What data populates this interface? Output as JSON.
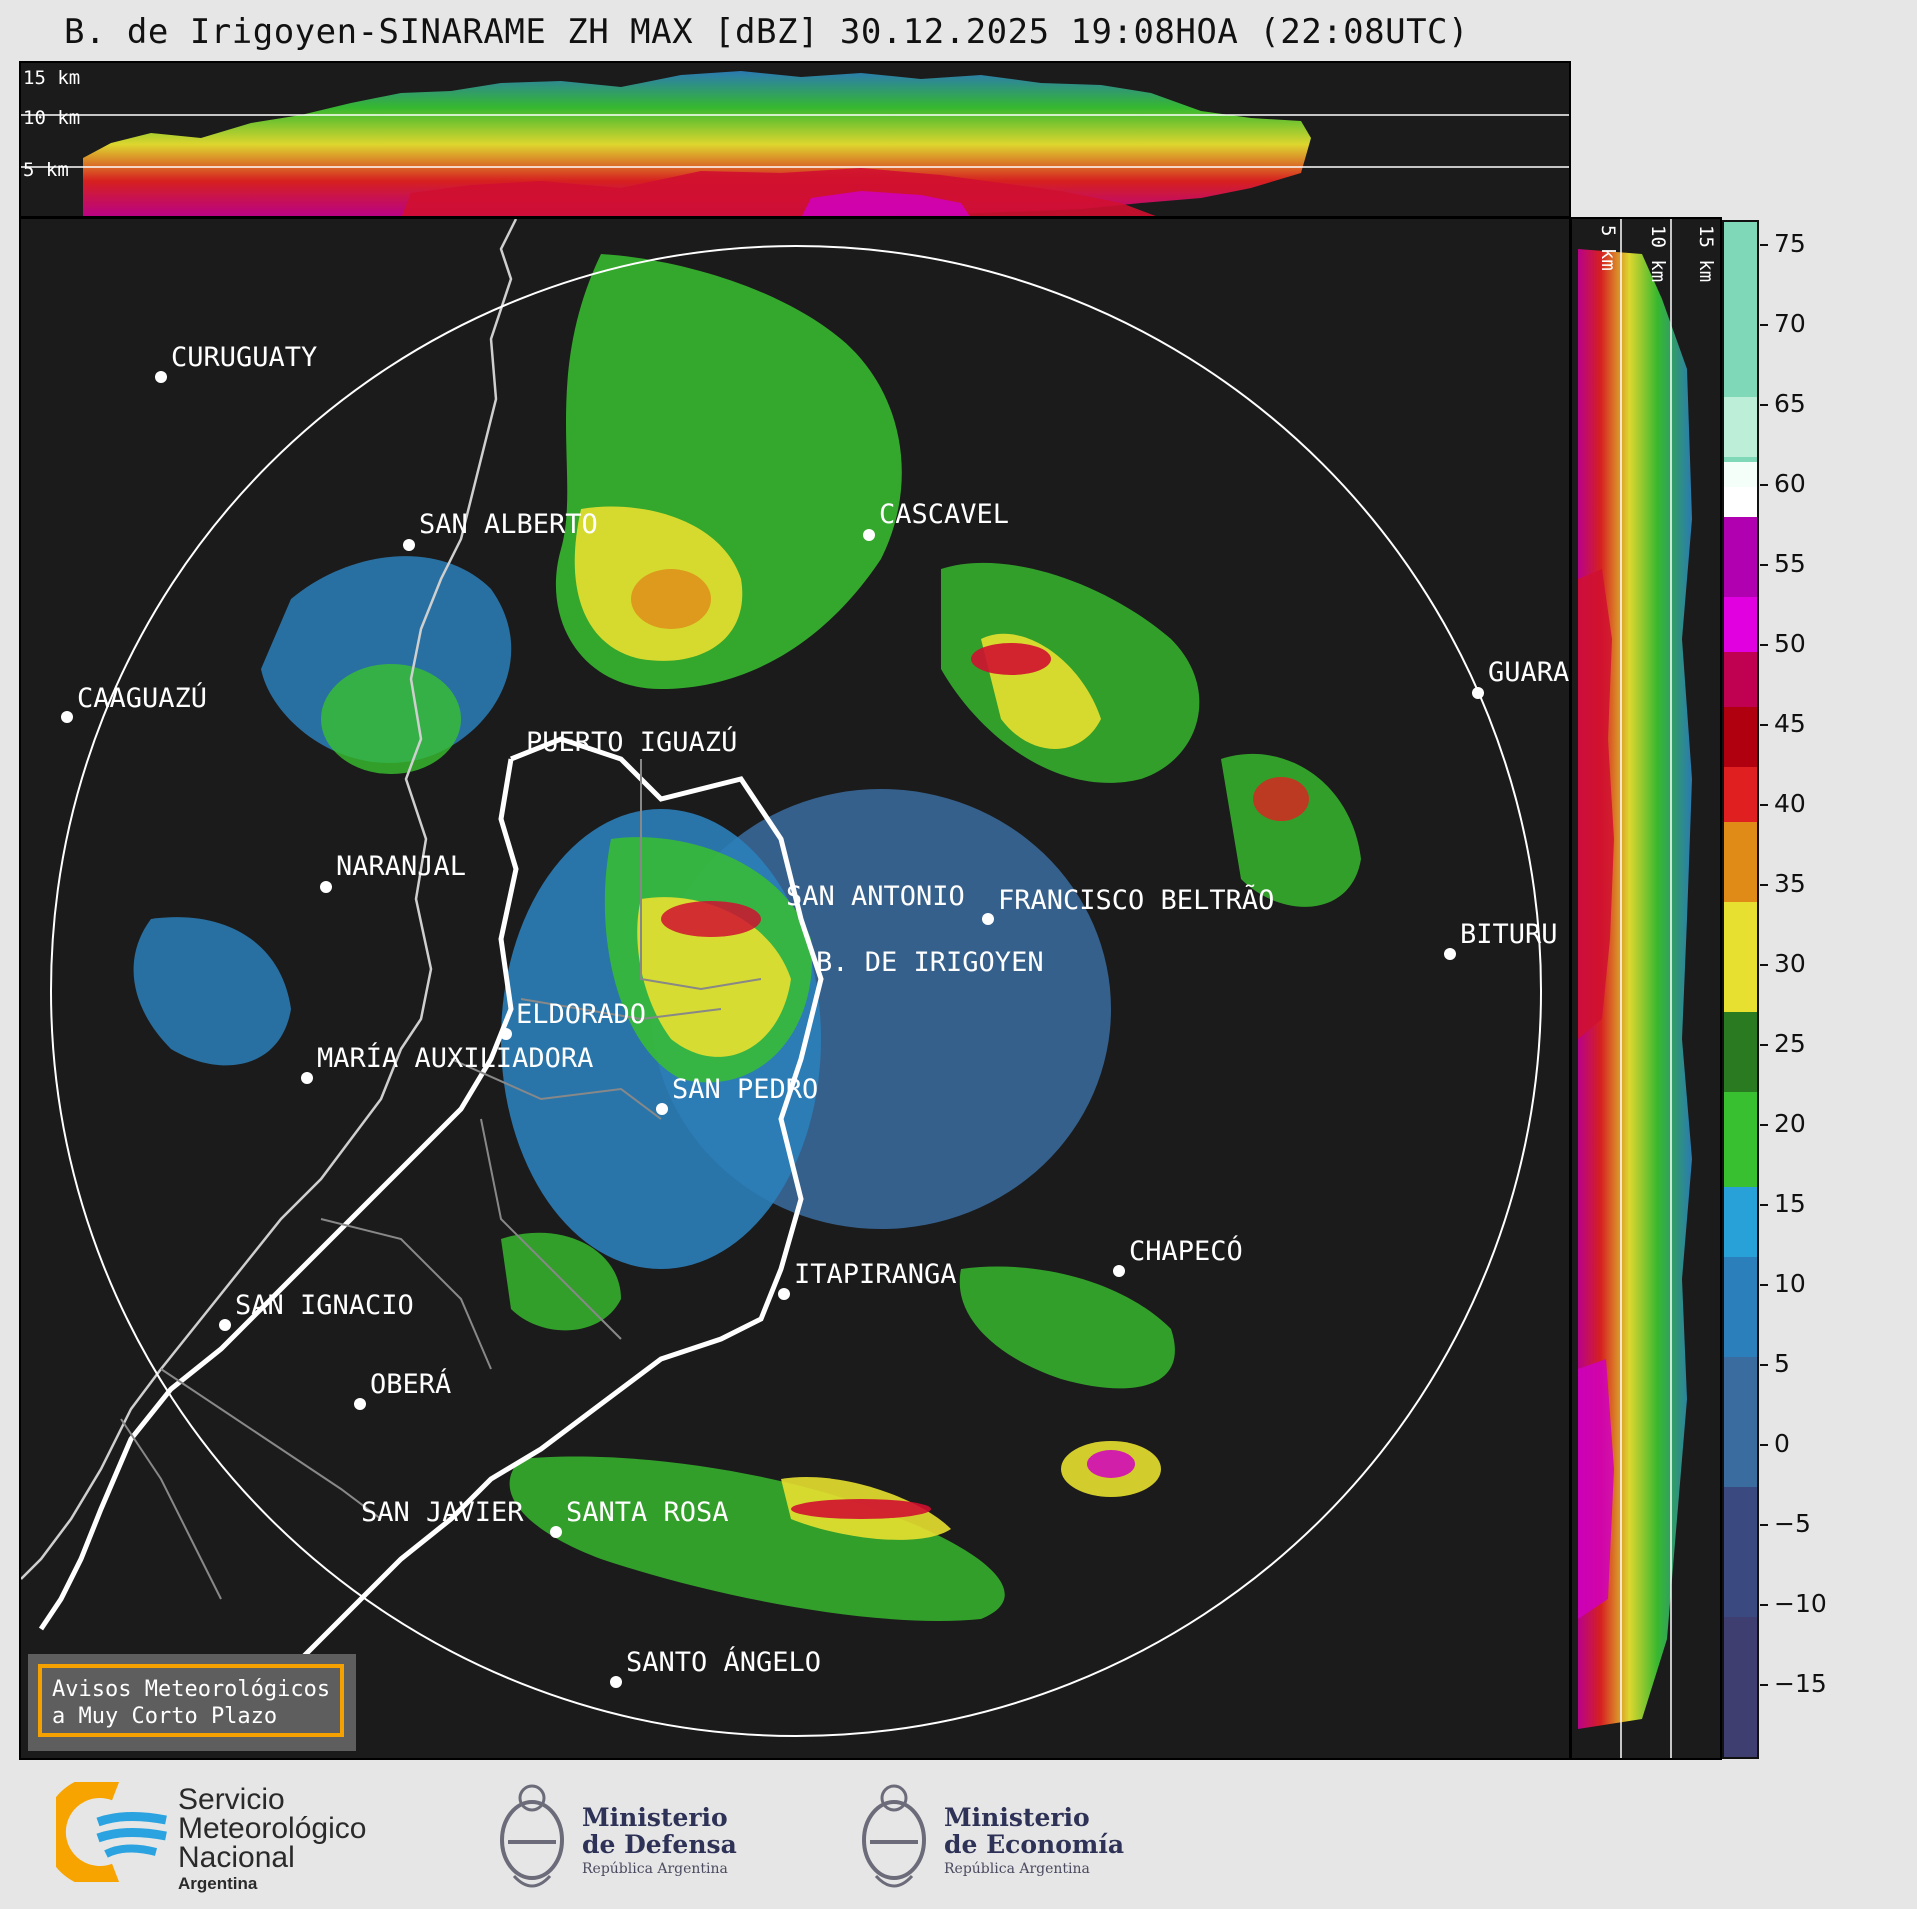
{
  "header": {
    "title": "B. de Irigoyen-SINARAME ZH MAX [dBZ] 30.12.2025 19:08HOA (22:08UTC)"
  },
  "top_section": {
    "height_labels": [
      "15 km",
      "10 km",
      "5 km"
    ]
  },
  "side_section": {
    "height_labels": [
      "5 km",
      "10 km",
      "15 km"
    ]
  },
  "colorbar": {
    "units": "dBZ",
    "ticks": [
      "75",
      "70",
      "65",
      "60",
      "55",
      "50",
      "45",
      "40",
      "35",
      "30",
      "25",
      "20",
      "15",
      "10",
      "5",
      "0",
      "−5",
      "−10",
      "−15"
    ],
    "colors": {
      "gt60": "#88dcbc",
      "55_60": "#a000a0",
      "50_55": "#e000e0",
      "45_50": "#c00020",
      "40_45": "#e02020",
      "35_40": "#e08a18",
      "30_35": "#e8e030",
      "25_30": "#2a7a22",
      "20_25": "#36c030",
      "15_20": "#38e030",
      "10_15": "#28a0d8",
      "5_10": "#2b7fba",
      "0_5": "#3a6ca0",
      "neg": "#3e3e70"
    }
  },
  "map": {
    "radar_site": "B. DE IRIGOYEN",
    "cities": [
      {
        "name": "CURUGUATY"
      },
      {
        "name": "SAN ALBERTO"
      },
      {
        "name": "CASCAVEL"
      },
      {
        "name": "CAAGUAZÚ"
      },
      {
        "name": "GUARA"
      },
      {
        "name": "PUERTO IGUAZÚ"
      },
      {
        "name": "NARANJAL"
      },
      {
        "name": "SAN ANTONIO"
      },
      {
        "name": "FRANCISCO BELTRÃO"
      },
      {
        "name": "BITURU"
      },
      {
        "name": "B. DE IRIGOYEN"
      },
      {
        "name": "ELDORADO"
      },
      {
        "name": "MARÍA AUXILIADORA"
      },
      {
        "name": "SAN PEDRO"
      },
      {
        "name": "CHAPECÓ"
      },
      {
        "name": "ITAPIRANGA"
      },
      {
        "name": "SAN IGNACIO"
      },
      {
        "name": "OBERÁ"
      },
      {
        "name": "SAN JAVIER"
      },
      {
        "name": "SANTA ROSA"
      },
      {
        "name": "SANTO ÁNGELO"
      }
    ]
  },
  "warning_box": {
    "line1": "Avisos Meteorológicos",
    "line2": "a Muy Corto Plazo"
  },
  "footer": {
    "smn": {
      "line1": "Servicio",
      "line2": "Meteorológico",
      "line3": "Nacional",
      "line4": "Argentina"
    },
    "defensa": {
      "line1": "Ministerio",
      "line2": "de Defensa",
      "line3": "República Argentina"
    },
    "economia": {
      "line1": "Ministerio",
      "line2": "de Economía",
      "line3": "República Argentina"
    }
  }
}
